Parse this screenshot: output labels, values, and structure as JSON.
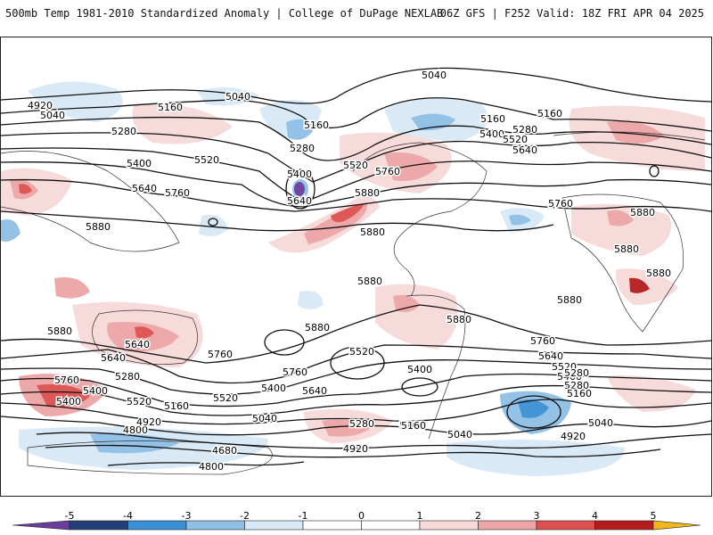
{
  "header": {
    "title_left": "500mb Temp 1981-2010 Standardized Anomaly | College of DuPage NEXLAB",
    "title_right": "06Z GFS | F252 Valid: 18Z FRI APR 04 2025"
  },
  "colors": {
    "neg5": "#6a3d9a",
    "neg4": "#233f7a",
    "neg3": "#3b8fd4",
    "neg2": "#8fbfe6",
    "neg1": "#d7e8f6",
    "zero": "#ffffff",
    "pos1": "#f7d9d9",
    "pos2": "#eda5a5",
    "pos3": "#de5050",
    "pos4": "#b51d1d",
    "pos5": "#7a0f0f",
    "pos_over": "#f2b61d"
  },
  "colorbar": {
    "ticks": [
      "-5",
      "-4",
      "-3",
      "-2",
      "-1",
      "0",
      "1",
      "2",
      "3",
      "4",
      "5"
    ]
  },
  "contour_labels": [
    {
      "id": "c5040a",
      "text": "5040"
    },
    {
      "id": "c5040b",
      "text": "5040"
    },
    {
      "id": "c4920a",
      "text": "4920"
    },
    {
      "id": "c5040c",
      "text": "5040"
    },
    {
      "id": "c5160a",
      "text": "5160"
    },
    {
      "id": "c5280a",
      "text": "5280"
    },
    {
      "id": "c5160b",
      "text": "5160"
    },
    {
      "id": "c5160c",
      "text": "5160"
    },
    {
      "id": "c5160d",
      "text": "5160"
    },
    {
      "id": "c5280b",
      "text": "5280"
    },
    {
      "id": "c5400a",
      "text": "5400"
    },
    {
      "id": "c5520a",
      "text": "5520"
    },
    {
      "id": "c5280c",
      "text": "5280"
    },
    {
      "id": "c5400b",
      "text": "5400"
    },
    {
      "id": "c5520b",
      "text": "5520"
    },
    {
      "id": "c5640a",
      "text": "5640"
    },
    {
      "id": "c5760a",
      "text": "5760"
    },
    {
      "id": "c5400c",
      "text": "5400"
    },
    {
      "id": "c5520c",
      "text": "5520"
    },
    {
      "id": "c5640b",
      "text": "5640"
    },
    {
      "id": "c5640c",
      "text": "5640"
    },
    {
      "id": "c5760b",
      "text": "5760"
    },
    {
      "id": "c5880a",
      "text": "5880"
    },
    {
      "id": "c5760c",
      "text": "5760"
    },
    {
      "id": "c5880b",
      "text": "5880"
    },
    {
      "id": "c5880c",
      "text": "5880"
    },
    {
      "id": "c5880d",
      "text": "5880"
    },
    {
      "id": "c5880e",
      "text": "5880"
    },
    {
      "id": "c5880f",
      "text": "5880"
    },
    {
      "id": "c5880g",
      "text": "5880"
    },
    {
      "id": "c5880h",
      "text": "5880"
    },
    {
      "id": "c5880i",
      "text": "5880"
    },
    {
      "id": "c5880j",
      "text": "5880"
    },
    {
      "id": "c5880k",
      "text": "5880"
    },
    {
      "id": "c5640d",
      "text": "5640"
    },
    {
      "id": "c5760d",
      "text": "5760"
    },
    {
      "id": "c5760e",
      "text": "5760"
    },
    {
      "id": "c5640e",
      "text": "5640"
    },
    {
      "id": "c5520d",
      "text": "5520"
    },
    {
      "id": "c5400d",
      "text": "5400"
    },
    {
      "id": "c5280d",
      "text": "5280"
    },
    {
      "id": "c5160e",
      "text": "5160"
    },
    {
      "id": "c5760f",
      "text": "5760"
    },
    {
      "id": "c5400e",
      "text": "5400"
    },
    {
      "id": "c5280e",
      "text": "5280"
    },
    {
      "id": "c5520e",
      "text": "5520"
    },
    {
      "id": "c5400f",
      "text": "5400"
    },
    {
      "id": "c5640f",
      "text": "5640"
    },
    {
      "id": "c5520f",
      "text": "5520"
    },
    {
      "id": "c5400g",
      "text": "5400"
    },
    {
      "id": "c5760g",
      "text": "5760"
    },
    {
      "id": "c5640g",
      "text": "5640"
    },
    {
      "id": "c5520g",
      "text": "5520"
    },
    {
      "id": "c5400h",
      "text": "5400"
    },
    {
      "id": "c5280f",
      "text": "5280"
    },
    {
      "id": "c5160f",
      "text": "5160"
    },
    {
      "id": "c5040d",
      "text": "5040"
    },
    {
      "id": "c5160g",
      "text": "5160"
    },
    {
      "id": "c5040e",
      "text": "5040"
    },
    {
      "id": "c5280g",
      "text": "5280"
    },
    {
      "id": "c4920b",
      "text": "4920"
    },
    {
      "id": "c4800a",
      "text": "4800"
    },
    {
      "id": "c4920c",
      "text": "4920"
    },
    {
      "id": "c4680a",
      "text": "4680"
    },
    {
      "id": "c4800b",
      "text": "4800"
    },
    {
      "id": "c4920d",
      "text": "4920"
    },
    {
      "id": "c5160h",
      "text": "5160"
    },
    {
      "id": "c5040f",
      "text": "5040"
    },
    {
      "id": "c5400i",
      "text": "5400"
    }
  ]
}
